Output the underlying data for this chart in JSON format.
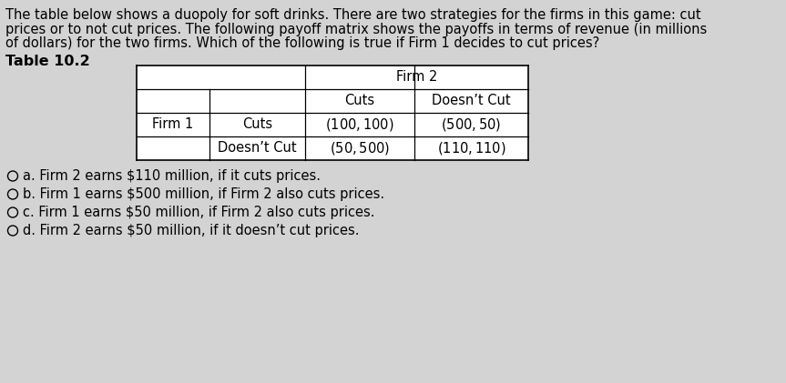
{
  "background_color": "#d3d3d3",
  "text_color": "#000000",
  "paragraph_lines": [
    "The table below shows a duopoly for soft drinks. There are two strategies for the firms in this game: cut",
    "prices or to not cut prices. The following payoff matrix shows the payoffs in terms of revenue (in millions",
    "of dollars) for the two firms. Which of the following is true if Firm 1 decides to cut prices?"
  ],
  "table_title": "Table 10.2",
  "firm1_label": "Firm 1",
  "firm2_label": "Firm 2",
  "col_headers": [
    "Cuts",
    "Doesn’t Cut"
  ],
  "row_headers": [
    "Cuts",
    "Doesn’t Cut"
  ],
  "cells": [
    [
      "($100, $100)",
      "($500, $50)"
    ],
    [
      "($50, $500)",
      "($110, $110)"
    ]
  ],
  "options": [
    "a. Firm 2 earns $110 million, if it cuts prices.",
    "b. Firm 1 earns $500 million, if Firm 2 also cuts prices.",
    "c. Firm 1 earns $50 million, if Firm 2 also cuts prices.",
    "d. Firm 2 earns $50 million, if it doesn’t cut prices."
  ],
  "font_size_paragraph": 10.5,
  "font_size_table": 10.5,
  "font_size_title": 11.5,
  "font_size_options": 10.5
}
